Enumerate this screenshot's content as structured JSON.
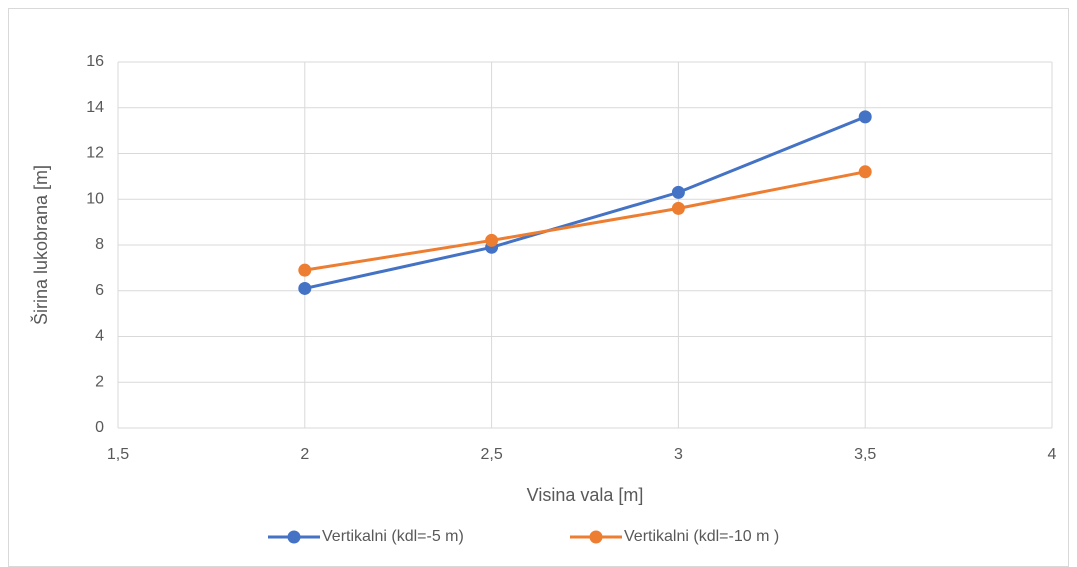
{
  "chart_data": {
    "type": "line",
    "xlabel": "Visina vala [m]",
    "ylabel": "Širina lukobrana [m]",
    "x": [
      2,
      2.5,
      3,
      3.5
    ],
    "series": [
      {
        "name": "Vertikalni (kdl=-5 m)",
        "color": "#4472c4",
        "values": [
          6.1,
          7.9,
          10.3,
          13.6
        ]
      },
      {
        "name": "Vertikalni (kdl=-10 m )",
        "color": "#ed7d31",
        "values": [
          6.9,
          8.2,
          9.6,
          11.2
        ]
      }
    ],
    "xlim": [
      1.5,
      4
    ],
    "xticks": [
      {
        "value": 1.5,
        "label": "1,5"
      },
      2,
      {
        "value": 2.5,
        "label": "2,5"
      },
      3,
      {
        "value": 3.5,
        "label": "3,5"
      },
      4
    ],
    "ylim": [
      0,
      16
    ],
    "yticks": [
      0,
      2,
      4,
      6,
      8,
      10,
      12,
      14,
      16
    ],
    "grid": true,
    "legend": "bottom"
  }
}
